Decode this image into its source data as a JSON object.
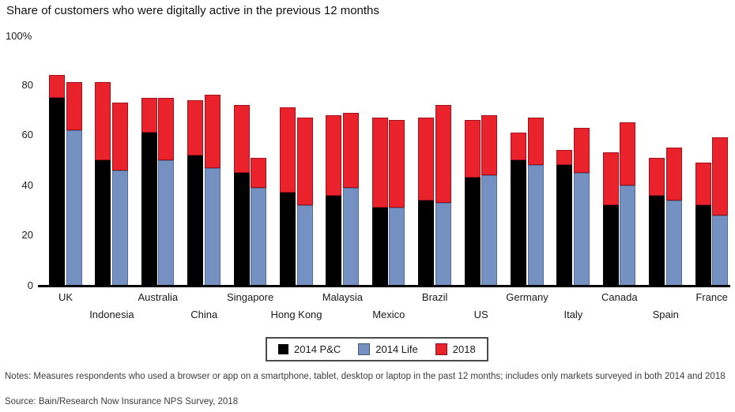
{
  "title": "Share of customers who were digitally active in the previous 12 months",
  "y_axis": {
    "top_label": "100%",
    "ticks": [
      80,
      60,
      40,
      20,
      0
    ]
  },
  "legend": [
    {
      "label": "2014 P&C",
      "color": "#000000"
    },
    {
      "label": "2014 Life",
      "color": "#7591c2"
    },
    {
      "label": "2018",
      "color": "#e9222c"
    }
  ],
  "notes": "Notes: Measures respondents who used a browser or app on a smartphone, tablet, desktop or laptop in the past 12 months; includes only markets surveyed in both 2014 and 2018",
  "source": "Source: Bain/Research Now Insurance NPS Survey, 2018",
  "chart_data": {
    "type": "bar",
    "subtype": "grouped-stacked",
    "description": "Each country has two bars. Bar 1: black base = 2014 P&C share, red cap rises to the 2018 level. Bar 2: blue base = 2014 Life share, red cap rises to the 2018 level. Values are percentages.",
    "categories": [
      "UK",
      "Indonesia",
      "Australia",
      "China",
      "Singapore",
      "Hong Kong",
      "Malaysia",
      "Mexico",
      "Brazil",
      "US",
      "Germany",
      "Italy",
      "Canada",
      "Spain",
      "France"
    ],
    "series": [
      {
        "name": "2014 P&C",
        "color": "#000000",
        "values": [
          75,
          50,
          61,
          52,
          45,
          37,
          36,
          31,
          34,
          43,
          50,
          48,
          32,
          36,
          32
        ]
      },
      {
        "name": "2018 (P&C bar top)",
        "color": "#e9222c",
        "values": [
          84,
          81,
          75,
          74,
          72,
          71,
          68,
          67,
          67,
          66,
          61,
          54,
          53,
          51,
          49
        ]
      },
      {
        "name": "2014 Life",
        "color": "#7591c2",
        "values": [
          62,
          46,
          50,
          47,
          39,
          32,
          39,
          31,
          33,
          44,
          48,
          45,
          40,
          34,
          28
        ]
      },
      {
        "name": "2018 (Life bar top)",
        "color": "#e9222c",
        "values": [
          81,
          73,
          75,
          76,
          51,
          67,
          69,
          66,
          72,
          68,
          67,
          63,
          65,
          55,
          59
        ]
      }
    ],
    "ylim": [
      0,
      100
    ],
    "grid": false,
    "legend_position": "bottom"
  }
}
